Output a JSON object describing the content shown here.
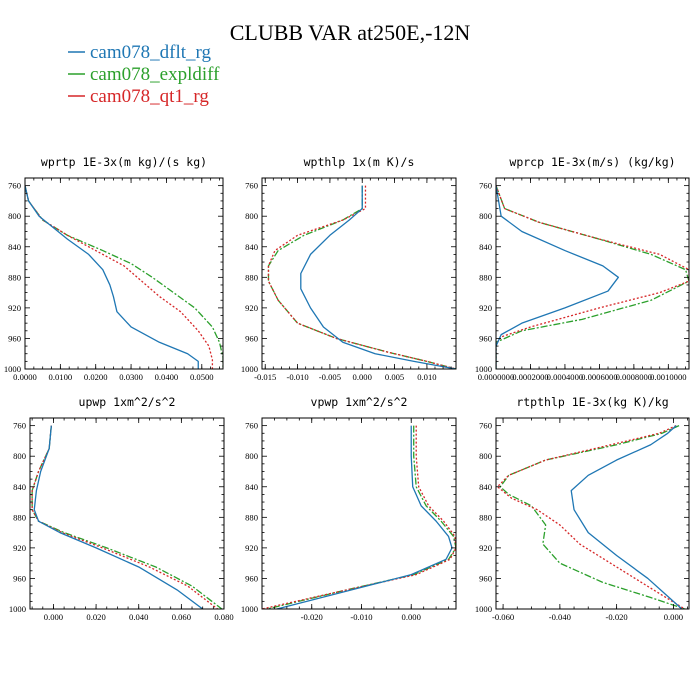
{
  "title": "CLUBB VAR at250E,-12N",
  "legend": [
    {
      "name": "cam078_dflt_rg",
      "color": "#1f77b4",
      "dash": "solid"
    },
    {
      "name": "cam078_expldiff",
      "color": "#2ca02c",
      "dash": "dashdot"
    },
    {
      "name": "cam078_qt1_rg",
      "color": "#d62728",
      "dash": "dotted"
    }
  ],
  "chart_data": [
    {
      "type": "line",
      "title": "wprtp  1E-3x(m kg)/(s kg)",
      "xlim": [
        0.0,
        0.056
      ],
      "ylim": [
        1000,
        750
      ],
      "xticks": [
        0.0,
        0.01,
        0.02,
        0.03,
        0.04,
        0.05
      ],
      "xticklabels": [
        "0.0000",
        "0.0100",
        "0.0200",
        "0.0300",
        "0.0400",
        "0.0500"
      ],
      "yticks": [
        760,
        800,
        840,
        880,
        920,
        960,
        1000
      ],
      "series": [
        {
          "name": "cam078_dflt_rg",
          "x": [
            0,
            0.001,
            0.004,
            0.008,
            0.012,
            0.018,
            0.022,
            0.024,
            0.025,
            0.026,
            0.03,
            0.038,
            0.046,
            0.049,
            0.049
          ],
          "y": [
            760,
            780,
            800,
            815,
            830,
            850,
            870,
            890,
            905,
            925,
            945,
            965,
            980,
            990,
            1000
          ]
        },
        {
          "name": "cam078_expldiff",
          "x": [
            0,
            0.001,
            0.005,
            0.012,
            0.022,
            0.03,
            0.036,
            0.042,
            0.048,
            0.053,
            0.055,
            0.056,
            0.056
          ],
          "y": [
            760,
            780,
            805,
            825,
            845,
            862,
            880,
            900,
            920,
            945,
            965,
            985,
            1000
          ]
        },
        {
          "name": "cam078_qt1_rg",
          "x": [
            0,
            0.001,
            0.005,
            0.012,
            0.02,
            0.028,
            0.033,
            0.038,
            0.044,
            0.049,
            0.052,
            0.053,
            0.053
          ],
          "y": [
            760,
            780,
            805,
            825,
            845,
            865,
            885,
            905,
            925,
            950,
            970,
            988,
            1000
          ]
        }
      ]
    },
    {
      "type": "line",
      "title": "wpthlp  1x(m K)/s",
      "xlim": [
        -0.0155,
        0.0145
      ],
      "ylim": [
        1000,
        750
      ],
      "xticks": [
        -0.015,
        -0.01,
        -0.005,
        0.0,
        0.005,
        0.01
      ],
      "xticklabels": [
        "-0.015",
        "-0.010",
        "-0.005",
        "0.000",
        "0.005",
        "0.010"
      ],
      "yticks": [
        760,
        800,
        840,
        880,
        920,
        960,
        1000
      ],
      "series": [
        {
          "name": "cam078_dflt_rg",
          "x": [
            0.0,
            0.0,
            -0.002,
            -0.005,
            -0.008,
            -0.0095,
            -0.0095,
            -0.008,
            -0.006,
            -0.003,
            0.002,
            0.008,
            0.0145
          ],
          "y": [
            760,
            790,
            805,
            825,
            850,
            875,
            895,
            920,
            945,
            965,
            980,
            990,
            1000
          ]
        },
        {
          "name": "cam078_expldiff",
          "x": [
            0.0,
            0.0,
            -0.003,
            -0.009,
            -0.013,
            -0.0145,
            -0.0145,
            -0.013,
            -0.01,
            -0.004,
            0.004,
            0.01,
            0.0145
          ],
          "y": [
            760,
            790,
            805,
            825,
            845,
            865,
            885,
            910,
            940,
            960,
            978,
            990,
            1000
          ]
        },
        {
          "name": "cam078_qt1_rg",
          "x": [
            0.0005,
            0.0005,
            -0.003,
            -0.01,
            -0.0135,
            -0.0145,
            -0.0145,
            -0.013,
            -0.01,
            -0.004,
            0.004,
            0.01,
            0.0145
          ],
          "y": [
            760,
            790,
            805,
            825,
            845,
            865,
            885,
            910,
            940,
            960,
            978,
            990,
            1000
          ]
        }
      ]
    },
    {
      "type": "line",
      "title": "wprcp  1E-3x(m/s) (kg/kg)",
      "xlim": [
        0.0,
        0.00112
      ],
      "ylim": [
        1000,
        750
      ],
      "xticks": [
        0.0,
        0.0002,
        0.0004,
        0.0006,
        0.0008,
        0.001
      ],
      "xticklabels": [
        "0.0000000",
        "0.0002000",
        "0.0004000",
        "0.0006000",
        "0.0008000",
        "0.0010000"
      ],
      "yticks": [
        760,
        800,
        840,
        880,
        920,
        960,
        1000
      ],
      "series": [
        {
          "name": "cam078_dflt_rg",
          "x": [
            0,
            3e-05,
            0.00015,
            0.0004,
            0.00062,
            0.00071,
            0.00065,
            0.0004,
            0.00015,
            3e-05,
            0,
            0
          ],
          "y": [
            760,
            800,
            820,
            845,
            865,
            880,
            898,
            920,
            940,
            955,
            970,
            1000
          ]
        },
        {
          "name": "cam078_expldiff",
          "x": [
            0,
            5e-05,
            0.00025,
            0.0006,
            0.0009,
            0.0011,
            0.00112,
            0.0009,
            0.0005,
            0.00015,
            0,
            0
          ],
          "y": [
            760,
            790,
            808,
            830,
            850,
            870,
            885,
            910,
            935,
            950,
            965,
            1000
          ]
        },
        {
          "name": "cam078_qt1_rg",
          "x": [
            0,
            5e-05,
            0.00025,
            0.0006,
            0.00095,
            0.00112,
            0.00112,
            0.00095,
            0.0006,
            0.0002,
            3e-05,
            0,
            0
          ],
          "y": [
            760,
            790,
            808,
            830,
            850,
            870,
            885,
            900,
            920,
            945,
            958,
            968,
            1000
          ]
        }
      ]
    },
    {
      "type": "line",
      "title": "upwp  1xm^2/s^2",
      "xlim": [
        -0.011,
        0.08
      ],
      "ylim": [
        1000,
        750
      ],
      "xticks": [
        0.0,
        0.02,
        0.04,
        0.06,
        0.08
      ],
      "xticklabels": [
        "0.000",
        "0.020",
        "0.040",
        "0.060",
        "0.080"
      ],
      "yticks": [
        760,
        800,
        840,
        880,
        920,
        960,
        1000
      ],
      "series": [
        {
          "name": "cam078_dflt_rg",
          "x": [
            -0.001,
            -0.002,
            -0.006,
            -0.008,
            -0.009,
            -0.007,
            0.003,
            0.02,
            0.04,
            0.058,
            0.07
          ],
          "y": [
            760,
            790,
            820,
            845,
            870,
            885,
            900,
            920,
            945,
            975,
            1000
          ]
        },
        {
          "name": "cam078_expldiff",
          "x": [
            -0.001,
            -0.002,
            -0.007,
            -0.01,
            -0.01,
            -0.007,
            0.005,
            0.025,
            0.048,
            0.065,
            0.079
          ],
          "y": [
            760,
            790,
            820,
            845,
            870,
            885,
            900,
            920,
            945,
            970,
            1000
          ]
        },
        {
          "name": "cam078_qt1_rg",
          "x": [
            -0.001,
            -0.002,
            -0.007,
            -0.01,
            -0.01,
            -0.007,
            0.004,
            0.023,
            0.045,
            0.063,
            0.077
          ],
          "y": [
            760,
            790,
            820,
            845,
            870,
            885,
            900,
            920,
            945,
            970,
            1000
          ]
        }
      ]
    },
    {
      "type": "line",
      "title": "vpwp  1xm^2/s^2",
      "xlim": [
        -0.03,
        0.009
      ],
      "ylim": [
        1000,
        750
      ],
      "xticks": [
        -0.02,
        -0.01,
        0.0
      ],
      "xticklabels": [
        "-0.020",
        "-0.010",
        "0.000"
      ],
      "yticks": [
        760,
        800,
        840,
        880,
        920,
        960,
        1000
      ],
      "series": [
        {
          "name": "cam078_dflt_rg",
          "x": [
            0,
            0,
            0.0003,
            0.002,
            0.005,
            0.0075,
            0.0082,
            0.007,
            0.0,
            -0.012,
            -0.027
          ],
          "y": [
            760,
            800,
            840,
            865,
            885,
            905,
            920,
            935,
            955,
            975,
            1000
          ]
        },
        {
          "name": "cam078_expldiff",
          "x": [
            0.0005,
            0.0005,
            0.001,
            0.003,
            0.006,
            0.0085,
            0.009,
            0.0075,
            0.0005,
            -0.013,
            -0.029
          ],
          "y": [
            760,
            800,
            840,
            865,
            885,
            905,
            920,
            935,
            955,
            975,
            1000
          ]
        },
        {
          "name": "cam078_qt1_rg",
          "x": [
            0.001,
            0.001,
            0.0015,
            0.0035,
            0.0065,
            0.0088,
            0.009,
            0.0078,
            0.001,
            -0.013,
            -0.03
          ],
          "y": [
            760,
            800,
            840,
            865,
            885,
            905,
            920,
            935,
            955,
            975,
            1000
          ]
        }
      ]
    },
    {
      "type": "line",
      "title": "rtpthlp  1E-3x(kg K)/kg",
      "xlim": [
        -0.0625,
        0.0055
      ],
      "ylim": [
        1000,
        750
      ],
      "xticks": [
        -0.06,
        -0.04,
        -0.02,
        0.0
      ],
      "xticklabels": [
        "-0.060",
        "-0.040",
        "-0.020",
        "0.000"
      ],
      "yticks": [
        760,
        800,
        840,
        880,
        920,
        960,
        1000
      ],
      "series": [
        {
          "name": "cam078_dflt_rg",
          "x": [
            0.001,
            -0.002,
            -0.008,
            -0.02,
            -0.03,
            -0.036,
            -0.035,
            -0.03,
            -0.02,
            -0.009,
            -0.003,
            0.003
          ],
          "y": [
            760,
            770,
            785,
            805,
            825,
            845,
            870,
            900,
            930,
            960,
            980,
            1000
          ]
        },
        {
          "name": "cam078_expldiff",
          "x": [
            0.002,
            -0.004,
            -0.02,
            -0.045,
            -0.058,
            -0.061,
            -0.058,
            -0.05,
            -0.045,
            -0.046,
            -0.04,
            -0.025,
            -0.008,
            0.004
          ],
          "y": [
            760,
            770,
            785,
            805,
            825,
            840,
            850,
            865,
            890,
            915,
            940,
            965,
            985,
            1000
          ]
        },
        {
          "name": "cam078_qt1_rg",
          "x": [
            0.001,
            -0.005,
            -0.022,
            -0.045,
            -0.058,
            -0.062,
            -0.057,
            -0.048,
            -0.04,
            -0.033,
            -0.02,
            -0.007,
            0.004
          ],
          "y": [
            760,
            770,
            785,
            805,
            825,
            840,
            855,
            870,
            890,
            915,
            945,
            975,
            1000
          ]
        }
      ]
    }
  ]
}
